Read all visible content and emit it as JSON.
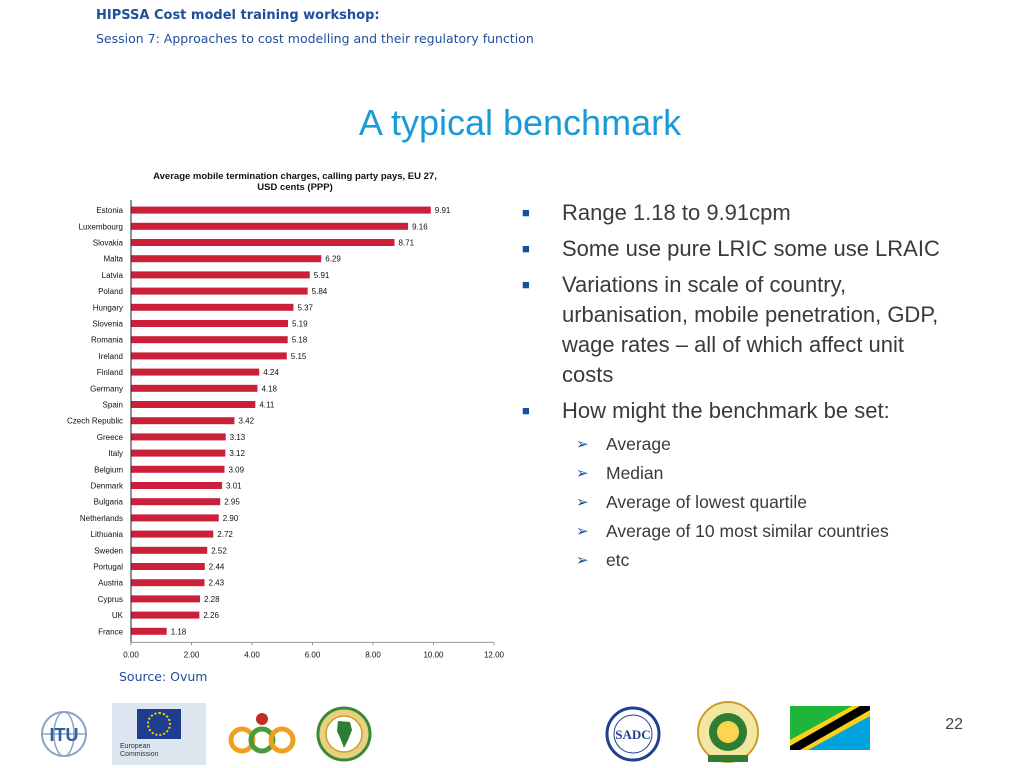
{
  "header": {
    "line1": "HIPSSA Cost model training workshop:",
    "line2": "Session 7: Approaches to cost modelling and their regulatory function"
  },
  "slide_title": "A typical benchmark",
  "chart_data": {
    "type": "bar",
    "orientation": "horizontal",
    "title_line1": "Average mobile termination charges, calling party pays, EU 27,",
    "title_line2": "USD cents (PPP)",
    "categories": [
      "Estonia",
      "Luxembourg",
      "Slovakia",
      "Malta",
      "Latvia",
      "Poland",
      "Hungary",
      "Slovenia",
      "Romania",
      "Ireland",
      "Finland",
      "Germany",
      "Spain",
      "Czech Republic",
      "Greece",
      "Italy",
      "Belgium",
      "Denmark",
      "Bulgaria",
      "Netherlands",
      "Lithuania",
      "Sweden",
      "Portugal",
      "Austria",
      "Cyprus",
      "UK",
      "France"
    ],
    "values": [
      9.91,
      9.16,
      8.71,
      6.29,
      5.91,
      5.84,
      5.37,
      5.19,
      5.18,
      5.15,
      4.24,
      4.18,
      4.11,
      3.42,
      3.13,
      3.12,
      3.09,
      3.01,
      2.95,
      2.9,
      2.72,
      2.52,
      2.44,
      2.43,
      2.28,
      2.26,
      1.18
    ],
    "value_labels": [
      "9.91",
      "9.16",
      "8.71",
      "6.29",
      "5.91",
      "5.84",
      "5.37",
      "5.19",
      "5.18",
      "5.15",
      "4.24",
      "4.18",
      "4.11",
      "3.42",
      "3.13",
      "3.12",
      "3.09",
      "3.01",
      "2.95",
      "2.90",
      "2.72",
      "2.52",
      "2.44",
      "2.43",
      "2.28",
      "2.26",
      "1.18"
    ],
    "xticks": [
      "0.00",
      "2.00",
      "4.00",
      "6.00",
      "8.00",
      "10.00",
      "12.00"
    ],
    "xlim": [
      0,
      12
    ],
    "bar_color": "#cc1f3a",
    "grid": false
  },
  "source": "Source: Ovum",
  "bullets": [
    {
      "text": "Range 1.18 to 9.91cpm"
    },
    {
      "text": "Some use pure LRIC some use LRAIC"
    },
    {
      "text": "Variations in scale of country, urbanisation, mobile penetration, GDP, wage rates – all of which affect unit costs"
    },
    {
      "text": "How might the benchmark be set:"
    }
  ],
  "sub_bullets": [
    "Average",
    "Median",
    "Average of lowest quartile",
    "Average of 10 most similar countries",
    "etc"
  ],
  "logos": {
    "itu": "ITU",
    "eu_line1": "European",
    "eu_line2": "Commission",
    "sadc": "SADC"
  },
  "page_number": "22",
  "colors": {
    "header_blue": "#1f4e9c",
    "title_blue": "#1a9bd7",
    "bar_red": "#cc1f3a"
  }
}
